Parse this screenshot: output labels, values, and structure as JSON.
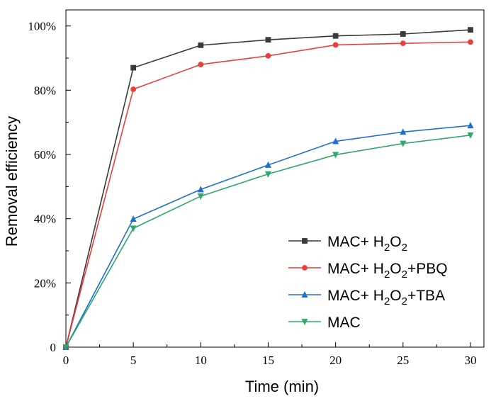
{
  "chart_data": {
    "type": "line",
    "xlabel": "Time (min)",
    "ylabel": "Removal efficiency",
    "xlim": [
      0,
      31
    ],
    "ylim": [
      0,
      1.05
    ],
    "x_ticks": [
      0,
      5,
      10,
      15,
      20,
      25,
      30
    ],
    "y_ticks": [
      0,
      0.2,
      0.4,
      0.6,
      0.8,
      1.0
    ],
    "y_tick_labels": [
      "0",
      "20%",
      "40%",
      "60%",
      "80%",
      "100%"
    ],
    "grid": false,
    "legend_position": "lower-right",
    "x": [
      0,
      5,
      10,
      15,
      20,
      25,
      30
    ],
    "series": [
      {
        "name": "MAC+ H2O2",
        "legend_text": [
          {
            "t": "MAC+ H"
          },
          {
            "t": "2",
            "sub": true
          },
          {
            "t": "O"
          },
          {
            "t": "2",
            "sub": true
          }
        ],
        "color": "#3a3a3a",
        "marker": "square",
        "values": [
          0,
          0.87,
          0.94,
          0.957,
          0.969,
          0.975,
          0.988
        ]
      },
      {
        "name": "MAC+ H2O2+PBQ",
        "legend_text": [
          {
            "t": "MAC+ H"
          },
          {
            "t": "2",
            "sub": true
          },
          {
            "t": "O"
          },
          {
            "t": "2",
            "sub": true
          },
          {
            "t": "+PBQ"
          }
        ],
        "color": "#e8403a",
        "marker": "circle",
        "values": [
          0,
          0.803,
          0.88,
          0.907,
          0.941,
          0.946,
          0.95
        ]
      },
      {
        "name": "MAC+ H2O2+TBA",
        "legend_text": [
          {
            "t": "MAC+ H"
          },
          {
            "t": "2",
            "sub": true
          },
          {
            "t": "O"
          },
          {
            "t": "2",
            "sub": true
          },
          {
            "t": "+TBA"
          }
        ],
        "color": "#1f6fd1",
        "marker": "triangle-up",
        "values": [
          0,
          0.399,
          0.491,
          0.567,
          0.641,
          0.67,
          0.69
        ]
      },
      {
        "name": "MAC",
        "legend_text": [
          {
            "t": "MAC"
          }
        ],
        "color": "#2fa86a",
        "marker": "triangle-down",
        "values": [
          0,
          0.37,
          0.47,
          0.539,
          0.599,
          0.634,
          0.66
        ]
      }
    ]
  }
}
